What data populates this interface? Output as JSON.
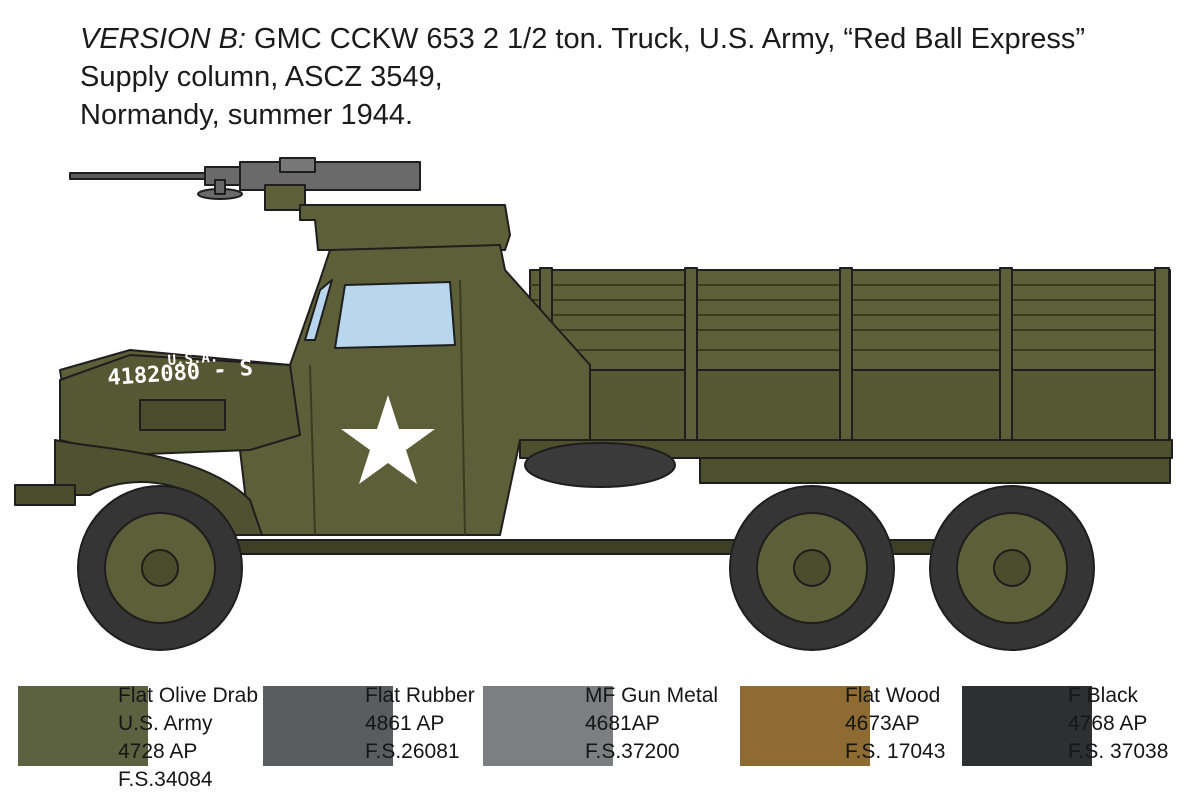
{
  "header": {
    "version_label": "VERSION B:",
    "line1_rest": " GMC CCKW 653 2 1/2 ton. Truck, U.S. Army, “Red Ball Express”",
    "line2": "Supply column, ASCZ 3549,",
    "line3": "Normandy, summer 1944."
  },
  "truck": {
    "markings": {
      "usa": "U.S.A.",
      "serial": "4182080 - S"
    },
    "colors": {
      "olive": "#5c5f37",
      "olive_dark": "#4a4d2c",
      "rubber": "#3a3a3a",
      "glass": "#b8d7ee",
      "star": "#ffffff"
    }
  },
  "paints": [
    {
      "name": "Flat Olive Drab",
      "line2": "U.S. Army",
      "line3": "4728 AP",
      "line4": "F.S.34084",
      "color": "#5c6240"
    },
    {
      "name": "Flat Rubber",
      "line2": "4861 AP",
      "line3": "F.S.26081",
      "line4": "",
      "color": "#5a5d5f"
    },
    {
      "name": "MF Gun Metal",
      "line2": "4681AP",
      "line3": "F.S.37200",
      "line4": "",
      "color": "#7c7e81"
    },
    {
      "name": "Flat Wood",
      "line2": "4673AP",
      "line3": "F.S. 17043",
      "line4": "",
      "color": "#8d6b33"
    },
    {
      "name": "F Black",
      "line2": "4768 AP",
      "line3": "F.S. 37038",
      "line4": "",
      "color": "#2d2f31"
    }
  ]
}
